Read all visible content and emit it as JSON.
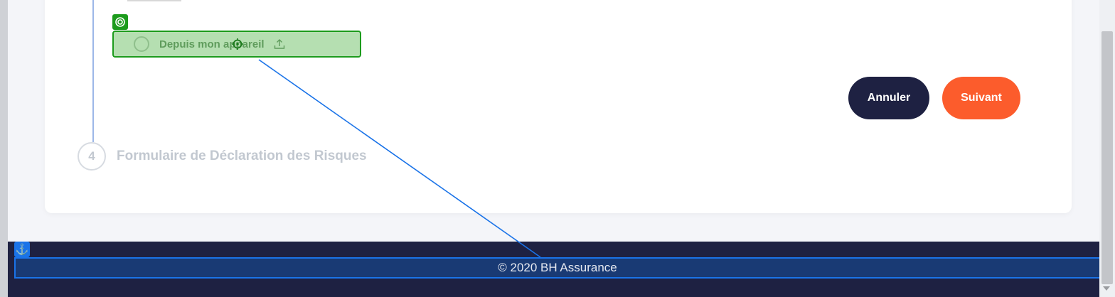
{
  "upload": {
    "option_label": "Depuis mon appareil",
    "icon": "upload-icon"
  },
  "actions": {
    "cancel_label": "Annuler",
    "next_label": "Suivant",
    "cancel_color": "#1e2142",
    "next_color": "#fc5c2c"
  },
  "step": {
    "number": "4",
    "title": "Formulaire de Déclaration des Risques"
  },
  "footer": {
    "copyright": "© 2020 BH Assurance",
    "anchor_icon": "⚓"
  },
  "colors": {
    "target_highlight": "#1c9b1c",
    "anchor_highlight": "#1a73e8"
  }
}
